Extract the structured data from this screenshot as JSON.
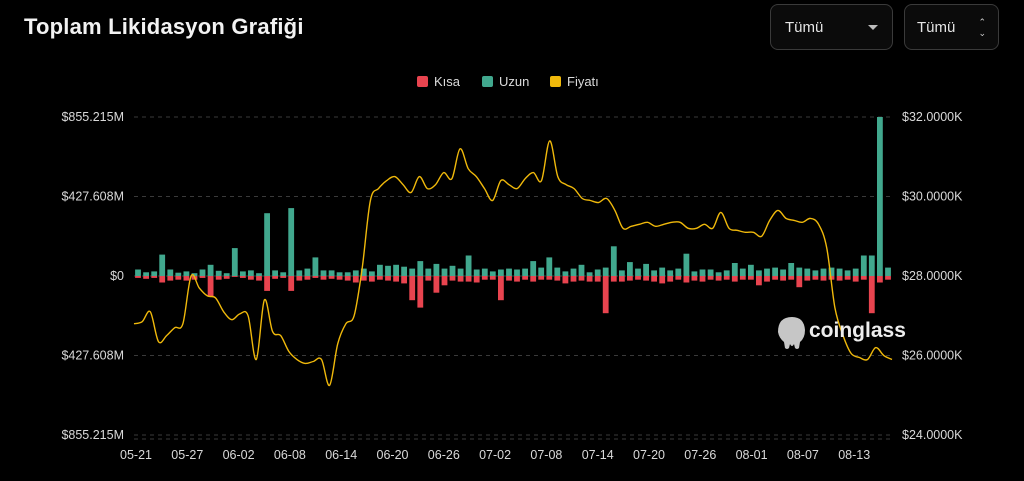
{
  "header": {
    "title": "Toplam Likidasyon Grafiği",
    "range_select": "Tümü",
    "coin_select": "Tümü"
  },
  "watermark": "coinglass",
  "colors": {
    "short": "#e8444f",
    "long": "#41a88e",
    "price": "#f0b90b",
    "grid": "#3a3a3a",
    "axis_text": "#d9d9d9"
  },
  "chart_data": {
    "type": "bar",
    "legend": [
      {
        "name": "Kısa",
        "color": "#e8444f"
      },
      {
        "name": "Uzun",
        "color": "#41a88e"
      },
      {
        "name": "Fiyatı",
        "color": "#f0b90b"
      }
    ],
    "legend_position": "top-center",
    "grid": true,
    "x_ticks": [
      "05-21",
      "05-27",
      "06-02",
      "06-08",
      "06-14",
      "06-20",
      "06-26",
      "07-02",
      "07-08",
      "07-14",
      "07-20",
      "07-26",
      "08-01",
      "08-07",
      "08-13"
    ],
    "y_left": {
      "ticks": [
        "$855.215M",
        "$427.608M",
        "$0",
        "$427.608M",
        "$855.215M"
      ],
      "range": [
        -855.215,
        855.215
      ],
      "unit": "M"
    },
    "y_right": {
      "ticks": [
        "$32.0000K",
        "$30.0000K",
        "$28.0000K",
        "$26.0000K",
        "$24.0000K"
      ],
      "range": [
        24,
        32
      ],
      "unit": "K"
    },
    "series": [
      {
        "name": "Uzun",
        "values": [
          35,
          20,
          25,
          115,
          35,
          18,
          25,
          15,
          35,
          60,
          28,
          15,
          150,
          25,
          30,
          15,
          338,
          30,
          20,
          365,
          30,
          40,
          100,
          30,
          30,
          20,
          20,
          30,
          40,
          25,
          60,
          55,
          60,
          50,
          40,
          80,
          40,
          65,
          40,
          55,
          40,
          110,
          35,
          40,
          25,
          35,
          40,
          35,
          40,
          80,
          45,
          100,
          45,
          25,
          40,
          60,
          20,
          35,
          45,
          160,
          30,
          75,
          40,
          65,
          30,
          45,
          30,
          40,
          120,
          25,
          35,
          35,
          20,
          30,
          70,
          40,
          60,
          30,
          40,
          45,
          35,
          70,
          45,
          40,
          30,
          40,
          45,
          40,
          30,
          40,
          110,
          110,
          855,
          45
        ]
      },
      {
        "name": "Kısa",
        "values": [
          -10,
          -15,
          -10,
          -35,
          -25,
          -20,
          -25,
          -20,
          -10,
          -110,
          -20,
          -15,
          -5,
          -10,
          -20,
          -25,
          -80,
          -15,
          -10,
          -80,
          -25,
          -20,
          -10,
          -20,
          -15,
          -20,
          -25,
          -35,
          -25,
          -30,
          -20,
          -25,
          -30,
          -40,
          -130,
          -170,
          -25,
          -90,
          -50,
          -25,
          -30,
          -30,
          -35,
          -20,
          -20,
          -130,
          -25,
          -30,
          -20,
          -30,
          -20,
          -20,
          -25,
          -40,
          -30,
          -25,
          -30,
          -30,
          -200,
          -30,
          -30,
          -25,
          -20,
          -25,
          -30,
          -40,
          -30,
          -20,
          -35,
          -25,
          -30,
          -20,
          -25,
          -20,
          -30,
          -20,
          -20,
          -50,
          -30,
          -20,
          -25,
          -20,
          -60,
          -25,
          -20,
          -25,
          -20,
          -25,
          -20,
          -30,
          -20,
          -200,
          -35,
          -20
        ]
      },
      {
        "name": "Fiyatı",
        "values": [
          26.8,
          26.85,
          27.1,
          26.35,
          26.5,
          26.7,
          26.8,
          28.0,
          27.7,
          27.5,
          27.45,
          27.1,
          26.9,
          27.05,
          27.0,
          25.9,
          27.4,
          26.6,
          26.5,
          26.1,
          25.9,
          25.8,
          25.85,
          25.9,
          25.25,
          26.3,
          26.8,
          27.0,
          28.2,
          29.9,
          30.2,
          30.4,
          30.5,
          30.3,
          30.1,
          30.5,
          30.2,
          30.3,
          30.6,
          30.45,
          31.2,
          30.7,
          30.5,
          30.2,
          29.9,
          30.4,
          30.3,
          30.2,
          30.45,
          30.6,
          30.4,
          31.4,
          30.5,
          30.3,
          30.2,
          29.95,
          29.9,
          29.85,
          29.95,
          29.65,
          29.2,
          29.25,
          29.3,
          29.35,
          29.25,
          29.3,
          29.35,
          29.35,
          29.2,
          29.2,
          29.3,
          29.2,
          29.6,
          29.2,
          29.15,
          29.1,
          29.1,
          29.0,
          29.4,
          29.65,
          29.45,
          29.4,
          29.35,
          29.45,
          29.3,
          28.7,
          27.2,
          26.5,
          26.05,
          25.95,
          25.9,
          26.2,
          26.0,
          25.9
        ]
      }
    ]
  }
}
